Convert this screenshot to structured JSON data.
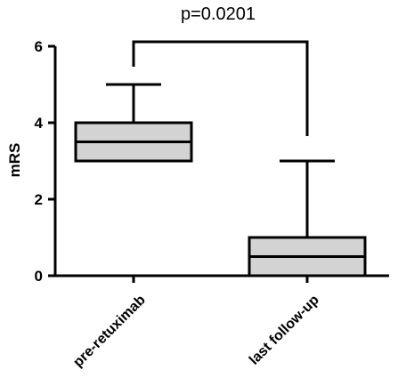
{
  "chart_data": {
    "type": "boxplot",
    "annotation": "p=0.0201",
    "ylabel": "mRS",
    "xlabel": "",
    "ylim": [
      0,
      6
    ],
    "yticks": [
      0,
      2,
      4,
      6
    ],
    "categories": [
      "pre-retuximab",
      "last follow-up"
    ],
    "boxes": [
      {
        "category": "pre-retuximab",
        "min": 3,
        "q1": 3,
        "median": 3.5,
        "q3": 4,
        "max": 5
      },
      {
        "category": "last follow-up",
        "min": 0,
        "q1": 0,
        "median": 0.5,
        "q3": 1,
        "max": 3
      }
    ],
    "significance_bracket": {
      "from": "pre-retuximab",
      "to": "last follow-up",
      "label": "p=0.0201"
    },
    "box_fill": "#d3d3d3",
    "line_color": "#000000",
    "grid": false
  }
}
